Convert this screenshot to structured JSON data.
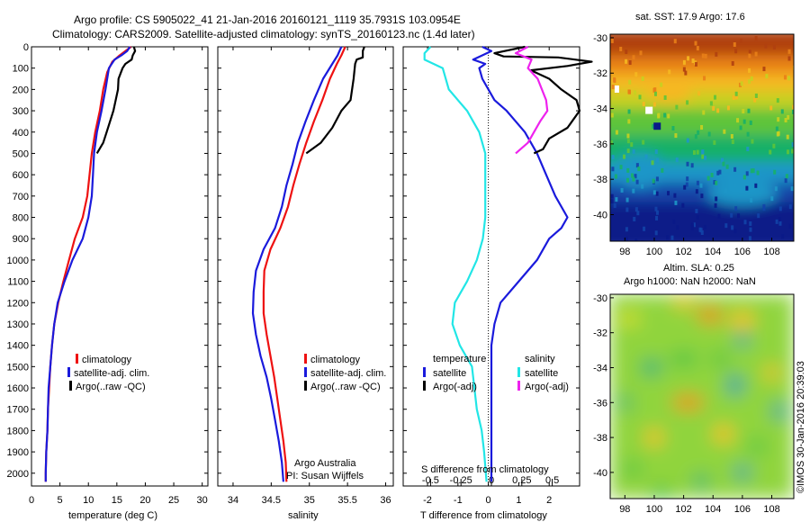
{
  "header": {
    "title_line1": "Argo profile: CS 5905022_41 21-Jan-2016 20160121_1119 35.7931S 103.0954E",
    "title_line2": "Climatology: CARS2009. Satellite-adjusted climatology: synTS_20160123.nc (1.4d later)"
  },
  "colors": {
    "climatology": "#ee1111",
    "satellite": "#1a1adc",
    "argo": "#000000",
    "sal_satellite": "#22e6e6",
    "sal_argo": "#ee22ee"
  },
  "chart_data": [
    {
      "id": "temperature",
      "type": "line",
      "xlabel": "temperature (deg C)",
      "ylabel": "",
      "xlim": [
        0,
        31
      ],
      "ylim": [
        2060,
        0
      ],
      "xticks": [
        0,
        5,
        10,
        15,
        20,
        25,
        30
      ],
      "xtick_labels": [
        "0",
        "5",
        "10",
        "15",
        "20",
        "25",
        "30"
      ],
      "yticks": [
        0,
        100,
        200,
        300,
        400,
        500,
        600,
        700,
        800,
        900,
        1000,
        1100,
        1200,
        1300,
        1400,
        1500,
        1600,
        1700,
        1800,
        1900,
        2000
      ],
      "ytick_labels": [
        "0",
        "100",
        "200",
        "300",
        "400",
        "500",
        "600",
        "700",
        "800",
        "900",
        "1000",
        "1100",
        "1200",
        "1300",
        "1400",
        "1500",
        "1600",
        "1700",
        "1800",
        "1900",
        "2000"
      ],
      "legend": [
        "climatology",
        "satellite-adj. clim.",
        "Argo(..raw -QC)"
      ],
      "series": [
        {
          "name": "climatology",
          "color": "#ee1111",
          "points": [
            [
              17.5,
              0
            ],
            [
              16.5,
              20
            ],
            [
              15.5,
              40
            ],
            [
              14.2,
              70
            ],
            [
              13.3,
              120
            ],
            [
              12.6,
              200
            ],
            [
              12.0,
              300
            ],
            [
              11.2,
              400
            ],
            [
              10.6,
              500
            ],
            [
              10.2,
              600
            ],
            [
              9.8,
              700
            ],
            [
              9.0,
              800
            ],
            [
              7.6,
              900
            ],
            [
              6.6,
              1000
            ],
            [
              5.6,
              1100
            ],
            [
              4.7,
              1200
            ],
            [
              4.0,
              1300
            ],
            [
              3.6,
              1400
            ],
            [
              3.3,
              1500
            ],
            [
              3.1,
              1600
            ],
            [
              2.9,
              1700
            ],
            [
              2.8,
              1800
            ],
            [
              2.6,
              1900
            ],
            [
              2.5,
              2000
            ],
            [
              2.5,
              2040
            ]
          ]
        },
        {
          "name": "satellite-adj. clim.",
          "color": "#1a1adc",
          "points": [
            [
              17.3,
              0
            ],
            [
              16.8,
              20
            ],
            [
              15.8,
              40
            ],
            [
              14.6,
              60
            ],
            [
              13.6,
              100
            ],
            [
              13.0,
              200
            ],
            [
              12.3,
              300
            ],
            [
              11.5,
              400
            ],
            [
              11.0,
              500
            ],
            [
              10.8,
              600
            ],
            [
              10.6,
              700
            ],
            [
              10.0,
              800
            ],
            [
              9.0,
              900
            ],
            [
              7.2,
              1000
            ],
            [
              5.8,
              1100
            ],
            [
              4.6,
              1200
            ],
            [
              4.0,
              1300
            ],
            [
              3.6,
              1400
            ],
            [
              3.3,
              1500
            ],
            [
              3.0,
              1600
            ],
            [
              2.9,
              1700
            ],
            [
              2.8,
              1800
            ],
            [
              2.6,
              1900
            ],
            [
              2.5,
              2000
            ],
            [
              2.5,
              2040
            ]
          ]
        },
        {
          "name": "Argo(..raw -QC)",
          "color": "#000000",
          "points": [
            [
              18.0,
              0
            ],
            [
              18.2,
              20
            ],
            [
              17.8,
              40
            ],
            [
              17.6,
              60
            ],
            [
              16.5,
              80
            ],
            [
              16.0,
              100
            ],
            [
              15.3,
              150
            ],
            [
              15.2,
              200
            ],
            [
              14.4,
              300
            ],
            [
              13.2,
              400
            ],
            [
              12.6,
              450
            ],
            [
              11.5,
              500
            ]
          ]
        }
      ]
    },
    {
      "id": "salinity",
      "type": "line",
      "xlabel": "salinity",
      "ylabel": "",
      "xlim": [
        33.8,
        36.1
      ],
      "ylim": [
        2060,
        0
      ],
      "xticks": [
        34,
        34.5,
        35,
        35.5,
        36
      ],
      "xtick_labels": [
        "34",
        "34.5",
        "35",
        "35.5",
        "36"
      ],
      "legend": [
        "climatology",
        "satellite-adj. clim.",
        "Argo(..raw -QC)"
      ],
      "annotation": [
        "Argo Australia",
        "PI: Susan Wijffels"
      ],
      "series": [
        {
          "name": "climatology",
          "color": "#ee1111",
          "points": [
            [
              35.47,
              0
            ],
            [
              35.42,
              40
            ],
            [
              35.36,
              80
            ],
            [
              35.27,
              150
            ],
            [
              35.17,
              250
            ],
            [
              35.06,
              350
            ],
            [
              34.96,
              450
            ],
            [
              34.87,
              550
            ],
            [
              34.79,
              650
            ],
            [
              34.72,
              750
            ],
            [
              34.62,
              850
            ],
            [
              34.49,
              950
            ],
            [
              34.41,
              1050
            ],
            [
              34.4,
              1150
            ],
            [
              34.4,
              1250
            ],
            [
              34.44,
              1350
            ],
            [
              34.49,
              1450
            ],
            [
              34.54,
              1550
            ],
            [
              34.58,
              1650
            ],
            [
              34.62,
              1750
            ],
            [
              34.66,
              1850
            ],
            [
              34.69,
              1950
            ],
            [
              34.7,
              2040
            ]
          ]
        },
        {
          "name": "satellite-adj. clim.",
          "color": "#1a1adc",
          "points": [
            [
              35.42,
              0
            ],
            [
              35.37,
              40
            ],
            [
              35.3,
              80
            ],
            [
              35.18,
              150
            ],
            [
              35.06,
              250
            ],
            [
              34.95,
              350
            ],
            [
              34.85,
              450
            ],
            [
              34.78,
              550
            ],
            [
              34.7,
              650
            ],
            [
              34.64,
              750
            ],
            [
              34.55,
              850
            ],
            [
              34.4,
              950
            ],
            [
              34.3,
              1050
            ],
            [
              34.27,
              1150
            ],
            [
              34.26,
              1250
            ],
            [
              34.3,
              1350
            ],
            [
              34.36,
              1450
            ],
            [
              34.44,
              1550
            ],
            [
              34.5,
              1650
            ],
            [
              34.55,
              1750
            ],
            [
              34.6,
              1850
            ],
            [
              34.64,
              1950
            ],
            [
              34.66,
              2040
            ]
          ]
        },
        {
          "name": "Argo(..raw -QC)",
          "color": "#000000",
          "points": [
            [
              35.72,
              0
            ],
            [
              35.7,
              20
            ],
            [
              35.7,
              50
            ],
            [
              35.62,
              60
            ],
            [
              35.6,
              80
            ],
            [
              35.58,
              150
            ],
            [
              35.54,
              250
            ],
            [
              35.42,
              300
            ],
            [
              35.3,
              380
            ],
            [
              35.15,
              450
            ],
            [
              34.96,
              500
            ]
          ]
        }
      ]
    },
    {
      "id": "difference",
      "type": "line",
      "xlabel": "T difference from climatology",
      "top_label": "S difference from climatology",
      "ylabel": "",
      "xlim": [
        -2.8,
        3.0
      ],
      "ylim": [
        2060,
        0
      ],
      "xticks": [
        -2,
        -1,
        0,
        1,
        2
      ],
      "xtick_labels": [
        "-2",
        "-1",
        "0",
        "1",
        "2"
      ],
      "sticks": [
        -0.5,
        -0.25,
        0,
        0.25,
        0.5
      ],
      "stick_labels": [
        "-0.5",
        "-0.25",
        "0",
        "0.25",
        "0.5"
      ],
      "legend": {
        "temperature_title": "temperature",
        "salinity_title": "salinity",
        "temperature_items": [
          "satellite",
          "Argo(-adj)"
        ],
        "salinity_items": [
          "satellite",
          "Argo(-adj)"
        ]
      },
      "series": [
        {
          "name": "temperature satellite",
          "color": "#1a1adc",
          "points": [
            [
              -0.2,
              0
            ],
            [
              0.1,
              20
            ],
            [
              -0.2,
              40
            ],
            [
              -0.5,
              60
            ],
            [
              -0.1,
              80
            ],
            [
              -0.3,
              100
            ],
            [
              -0.2,
              150
            ],
            [
              0.2,
              250
            ],
            [
              0.6,
              300
            ],
            [
              1.2,
              400
            ],
            [
              1.6,
              500
            ],
            [
              1.9,
              600
            ],
            [
              2.2,
              700
            ],
            [
              2.6,
              800
            ],
            [
              2.4,
              850
            ],
            [
              2.0,
              900
            ],
            [
              1.6,
              1000
            ],
            [
              1.0,
              1100
            ],
            [
              0.4,
              1200
            ],
            [
              0.2,
              1300
            ],
            [
              0.1,
              1400
            ],
            [
              0.1,
              1500
            ],
            [
              0.1,
              1600
            ],
            [
              0.1,
              1700
            ],
            [
              0.1,
              1800
            ],
            [
              0.1,
              1900
            ],
            [
              0.1,
              2040
            ]
          ]
        },
        {
          "name": "salinity satellite",
          "color": "#22e6e6",
          "points": [
            [
              -0.5,
              0
            ],
            [
              -0.55,
              30
            ],
            [
              -0.55,
              60
            ],
            [
              -0.4,
              100
            ],
            [
              -0.35,
              200
            ],
            [
              -0.2,
              300
            ],
            [
              -0.1,
              400
            ],
            [
              -0.05,
              500
            ],
            [
              -0.05,
              600
            ],
            [
              -0.05,
              700
            ],
            [
              -0.05,
              800
            ],
            [
              -0.07,
              900
            ],
            [
              -0.12,
              1000
            ],
            [
              -0.2,
              1100
            ],
            [
              -0.3,
              1200
            ],
            [
              -0.32,
              1300
            ],
            [
              -0.26,
              1400
            ],
            [
              -0.16,
              1500
            ],
            [
              -0.14,
              1600
            ],
            [
              -0.12,
              1700
            ],
            [
              -0.08,
              1800
            ],
            [
              -0.06,
              1900
            ],
            [
              -0.04,
              2040
            ]
          ]
        },
        {
          "name": "temperature Argo",
          "color": "#000000",
          "points": [
            [
              1.2,
              0
            ],
            [
              0.2,
              30
            ],
            [
              0.5,
              45
            ],
            [
              2.3,
              50
            ],
            [
              3.4,
              70
            ],
            [
              2.6,
              90
            ],
            [
              1.4,
              110
            ],
            [
              2.0,
              150
            ],
            [
              2.4,
              200
            ],
            [
              2.9,
              250
            ],
            [
              3.0,
              300
            ],
            [
              2.6,
              380
            ],
            [
              2.0,
              430
            ],
            [
              1.8,
              480
            ],
            [
              1.5,
              500
            ]
          ]
        },
        {
          "name": "salinity Argo",
          "color": "#ee22ee",
          "points": [
            [
              0.3,
              0
            ],
            [
              0.2,
              30
            ],
            [
              0.33,
              60
            ],
            [
              0.3,
              100
            ],
            [
              0.38,
              150
            ],
            [
              0.45,
              250
            ],
            [
              0.46,
              300
            ],
            [
              0.4,
              350
            ],
            [
              0.35,
              400
            ],
            [
              0.3,
              450
            ],
            [
              0.2,
              500
            ]
          ]
        }
      ]
    },
    {
      "id": "sst_map",
      "type": "heatmap",
      "title": "sat. SST: 17.9  Argo: 17.6",
      "xlim": [
        97,
        109.5
      ],
      "ylim": [
        -41.5,
        -29.8
      ],
      "xticks": [
        98,
        100,
        102,
        104,
        106,
        108
      ],
      "xtick_labels": [
        "98",
        "100",
        "102",
        "104",
        "106",
        "108"
      ],
      "yticks": [
        -30,
        -32,
        -34,
        -36,
        -38,
        -40
      ],
      "ytick_labels": [
        "-30",
        "-32",
        "-34",
        "-36",
        "-38",
        "-40"
      ],
      "colors": [
        "#b04010",
        "#e88018",
        "#f5b820",
        "#c8d020",
        "#5ec43a",
        "#18b068",
        "#1e96c8",
        "#1244a8",
        "#0a1a88"
      ],
      "marker": [
        100.2,
        -35.0
      ]
    },
    {
      "id": "sla_map",
      "type": "heatmap",
      "title_line1": "Altim. SLA: 0.25",
      "title_line2": "Argo h1000: NaN h2000: NaN",
      "xlim": [
        97,
        109.5
      ],
      "ylim": [
        -41.5,
        -29.8
      ],
      "xticks": [
        98,
        100,
        102,
        104,
        106,
        108
      ],
      "xtick_labels": [
        "98",
        "100",
        "102",
        "104",
        "106",
        "108"
      ],
      "yticks": [
        -30,
        -32,
        -34,
        -36,
        -38,
        -40
      ],
      "ytick_labels": [
        "-30",
        "-32",
        "-34",
        "-36",
        "-38",
        "-40"
      ],
      "colors": [
        "#f08a18",
        "#f5c020",
        "#d8e028",
        "#90d43c",
        "#48c44a",
        "#30b47a",
        "#2aa0a8"
      ]
    }
  ],
  "credit": "©IMOS 30-Jan-2016 20:39:03"
}
